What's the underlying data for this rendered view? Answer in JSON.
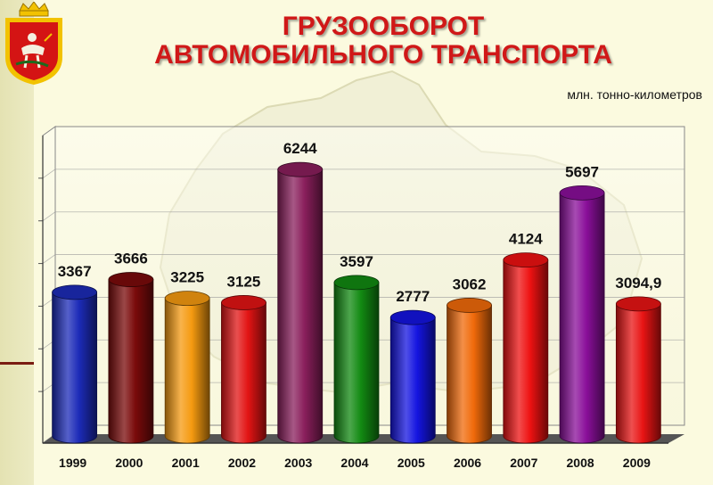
{
  "header": {
    "title_line1": "ГРУЗООБОРОТ",
    "title_line2": "АВТОМОБИЛЬНОГО ТРАНСПОРТА",
    "units": "млн. тонно-километров"
  },
  "emblem": {
    "icon": "moscow-oblast-coat-of-arms-icon"
  },
  "chart_data": {
    "type": "bar",
    "title": "ГРУЗООБОРОТ АВТОМОБИЛЬНОГО ТРАНСПОРТА",
    "ylabel": "млн. тонно-километров",
    "xlabel": "",
    "categories": [
      "1999",
      "2000",
      "2001",
      "2002",
      "2003",
      "2004",
      "2005",
      "2006",
      "2007",
      "2008",
      "2009"
    ],
    "values": [
      3367,
      3666,
      3225,
      3125,
      6244,
      3597,
      2777,
      3062,
      4124,
      5697,
      3094.9
    ],
    "value_labels": [
      "3367",
      "3666",
      "3225",
      "3125",
      "6244",
      "3597",
      "2777",
      "3062",
      "4124",
      "5697",
      "3094,9"
    ],
    "colors": [
      "#1c2bb8",
      "#7a0a0a",
      "#f59a10",
      "#e21414",
      "#8a1f5c",
      "#128a12",
      "#1414e0",
      "#f06a0a",
      "#ee1212",
      "#8a0f9a",
      "#e81414"
    ],
    "ylim": [
      0,
      7000
    ],
    "grid": true,
    "legend": "none",
    "style": "3d-cylinders"
  }
}
